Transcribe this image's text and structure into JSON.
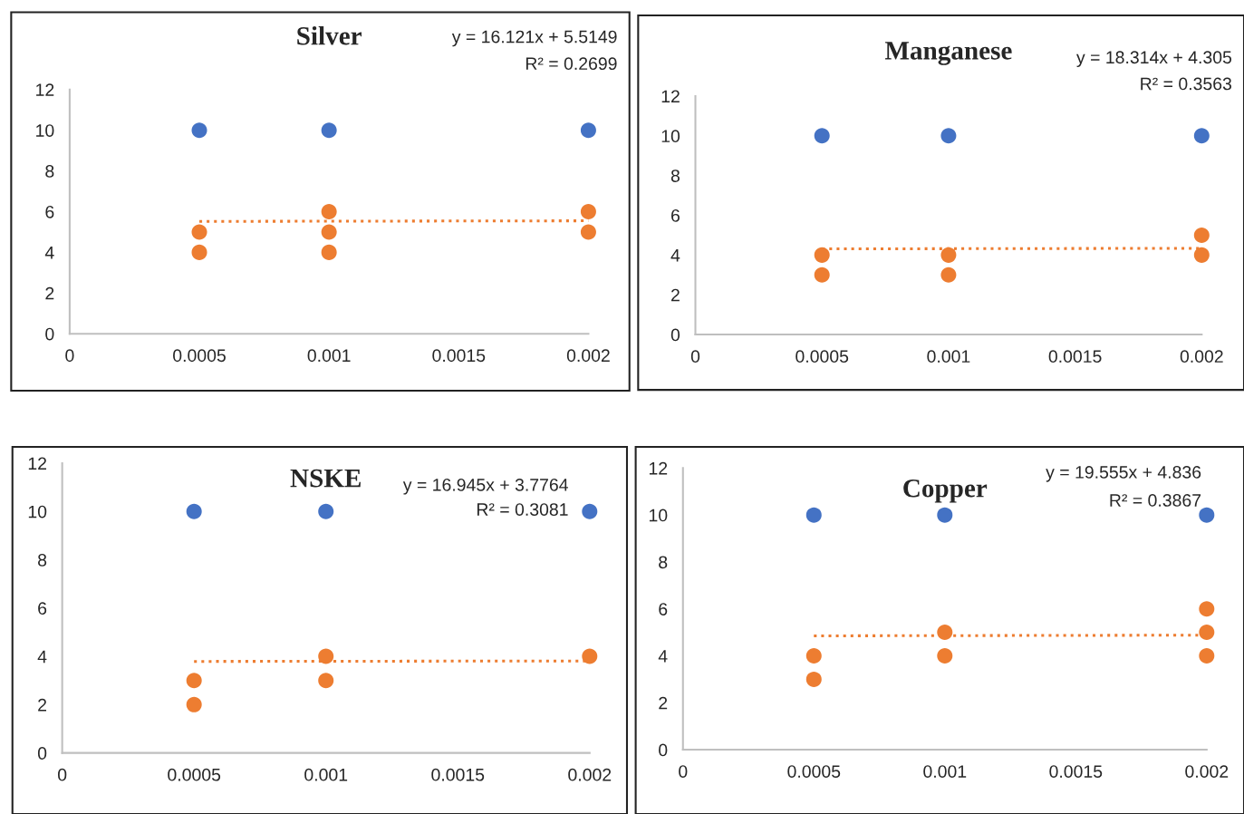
{
  "chart_data": [
    {
      "type": "scatter",
      "title": "Silver",
      "annotations": [
        "y = 16.121x + 5.5149",
        "R² = 0.2699"
      ],
      "xlim": [
        0,
        0.002
      ],
      "xticks": [
        0,
        0.0005,
        0.001,
        0.0015,
        0.002
      ],
      "ylim": [
        0,
        12
      ],
      "yticks": [
        0,
        2,
        4,
        6,
        8,
        10,
        12
      ],
      "grid": false,
      "legend": false,
      "marker": "circle",
      "series": [
        {
          "color": "#4472c4",
          "x": [
            0.0005,
            0.001,
            0.002
          ],
          "values": [
            10,
            10,
            10
          ]
        },
        {
          "color": "#ed7d31",
          "x": [
            0.0005,
            0.0005,
            0.001,
            0.001,
            0.001,
            0.002,
            0.002
          ],
          "values": [
            5,
            4,
            6,
            5,
            4,
            6,
            5
          ]
        },
        {
          "type": "line",
          "marker": "none",
          "line_style": "dotted",
          "color": "#ed7d31",
          "x": [
            0.0005,
            0.002
          ],
          "values": [
            5.52,
            5.55
          ]
        }
      ]
    },
    {
      "type": "scatter",
      "title": "Manganese",
      "annotations": [
        "y = 18.314x + 4.305",
        "R² = 0.3563"
      ],
      "xlim": [
        0,
        0.002
      ],
      "xticks": [
        0,
        0.0005,
        0.001,
        0.0015,
        0.002
      ],
      "ylim": [
        0,
        12
      ],
      "yticks": [
        0,
        2,
        4,
        6,
        8,
        10,
        12
      ],
      "grid": false,
      "legend": false,
      "marker": "circle",
      "series": [
        {
          "color": "#4472c4",
          "x": [
            0.0005,
            0.001,
            0.002
          ],
          "values": [
            10,
            10,
            10
          ]
        },
        {
          "color": "#ed7d31",
          "x": [
            0.0005,
            0.0005,
            0.001,
            0.001,
            0.002,
            0.002
          ],
          "values": [
            4,
            3,
            4,
            3,
            5,
            4
          ]
        },
        {
          "type": "line",
          "marker": "none",
          "line_style": "dotted",
          "color": "#ed7d31",
          "x": [
            0.0005,
            0.002
          ],
          "values": [
            4.31,
            4.34
          ]
        }
      ]
    },
    {
      "type": "scatter",
      "title": "NSKE",
      "annotations": [
        "y = 16.945x + 3.7764",
        "R² = 0.3081"
      ],
      "xlim": [
        0,
        0.002
      ],
      "xticks": [
        0,
        0.0005,
        0.001,
        0.0015,
        0.002
      ],
      "ylim": [
        0,
        12
      ],
      "yticks": [
        0,
        2,
        4,
        6,
        8,
        10,
        12
      ],
      "grid": false,
      "legend": false,
      "marker": "circle",
      "series": [
        {
          "color": "#4472c4",
          "x": [
            0.0005,
            0.001,
            0.002
          ],
          "values": [
            10,
            10,
            10
          ]
        },
        {
          "color": "#ed7d31",
          "x": [
            0.0005,
            0.0005,
            0.001,
            0.001,
            0.002
          ],
          "values": [
            3,
            2,
            4,
            3,
            4
          ]
        },
        {
          "type": "line",
          "marker": "none",
          "line_style": "dotted",
          "color": "#ed7d31",
          "x": [
            0.0005,
            0.002
          ],
          "values": [
            3.79,
            3.81
          ]
        }
      ]
    },
    {
      "type": "scatter",
      "title": "Copper",
      "annotations": [
        "y = 19.555x + 4.836",
        "R² = 0.3867"
      ],
      "xlim": [
        0,
        0.002
      ],
      "xticks": [
        0,
        0.0005,
        0.001,
        0.0015,
        0.002
      ],
      "ylim": [
        0,
        12
      ],
      "yticks": [
        0,
        2,
        4,
        6,
        8,
        10,
        12
      ],
      "grid": false,
      "legend": false,
      "marker": "circle",
      "series": [
        {
          "color": "#4472c4",
          "x": [
            0.0005,
            0.001,
            0.002
          ],
          "values": [
            10,
            10,
            10
          ]
        },
        {
          "color": "#ed7d31",
          "x": [
            0.0005,
            0.0005,
            0.001,
            0.001,
            0.002,
            0.002,
            0.002
          ],
          "values": [
            4,
            3,
            5,
            4,
            6,
            5,
            4
          ]
        },
        {
          "type": "line",
          "marker": "none",
          "line_style": "dotted",
          "color": "#ed7d31",
          "x": [
            0.0005,
            0.002
          ],
          "values": [
            4.85,
            4.88
          ]
        }
      ]
    }
  ]
}
